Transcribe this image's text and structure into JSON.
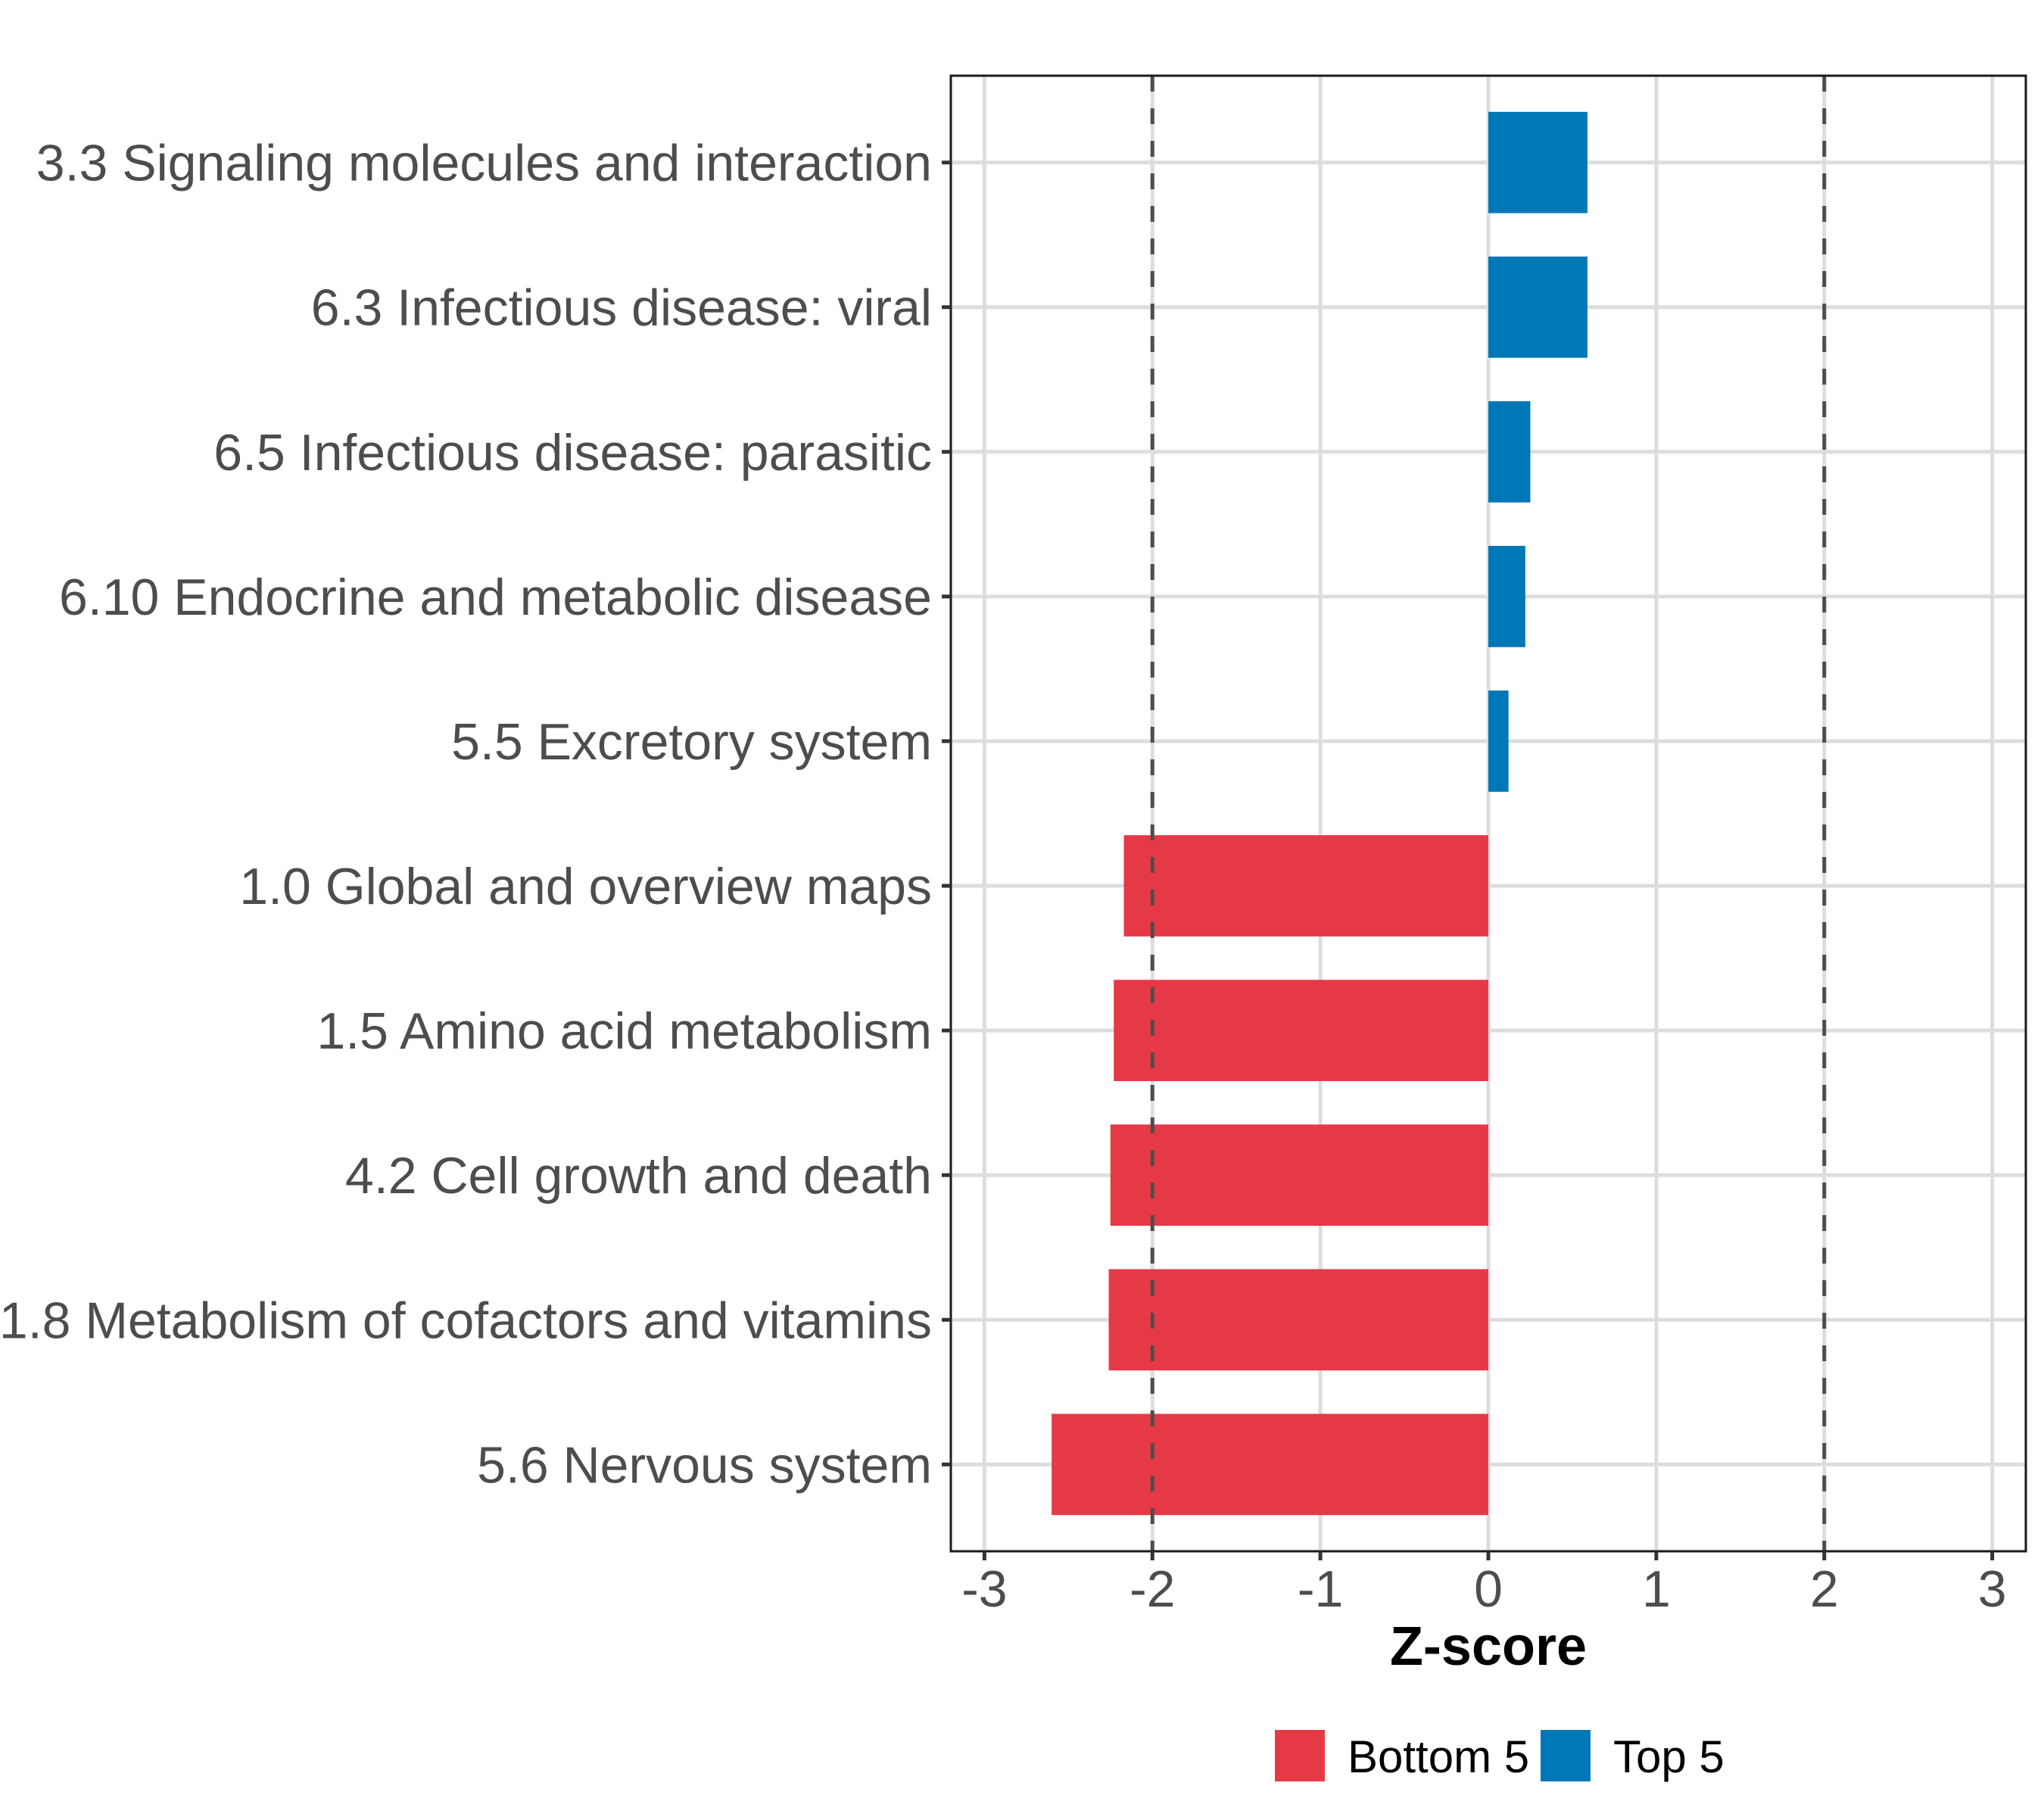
{
  "chart_data": {
    "type": "bar",
    "orientation": "horizontal",
    "title": "",
    "xlabel": "Z-score",
    "ylabel": "",
    "xlim": [
      -3.2,
      3.2
    ],
    "x_ticks": [
      -3,
      -2,
      -1,
      0,
      1,
      2,
      3
    ],
    "x_tick_labels": [
      "-3",
      "-2",
      "-1",
      "0",
      "1",
      "2",
      "3"
    ],
    "reference_lines": [
      -2,
      2
    ],
    "grid": true,
    "legend_position": "bottom",
    "categories": [
      "3.3 Signaling molecules and interaction",
      "6.3 Infectious disease: viral",
      "6.5 Infectious disease: parasitic",
      "6.10 Endocrine and metabolic disease",
      "5.5 Excretory system",
      "1.0 Global and overview maps",
      "1.5 Amino acid metabolism",
      "4.2 Cell growth and death",
      "1.8 Metabolism of cofactors and vitamins",
      "5.6 Nervous system"
    ],
    "values": [
      0.59,
      0.59,
      0.25,
      0.22,
      0.12,
      -2.17,
      -2.23,
      -2.25,
      -2.26,
      -2.6
    ],
    "groups": [
      "Top 5",
      "Top 5",
      "Top 5",
      "Top 5",
      "Top 5",
      "Bottom 5",
      "Bottom 5",
      "Bottom 5",
      "Bottom 5",
      "Bottom 5"
    ],
    "series": [
      {
        "name": "Bottom 5",
        "color": "#E63946"
      },
      {
        "name": "Top 5",
        "color": "#0077B6"
      }
    ]
  }
}
